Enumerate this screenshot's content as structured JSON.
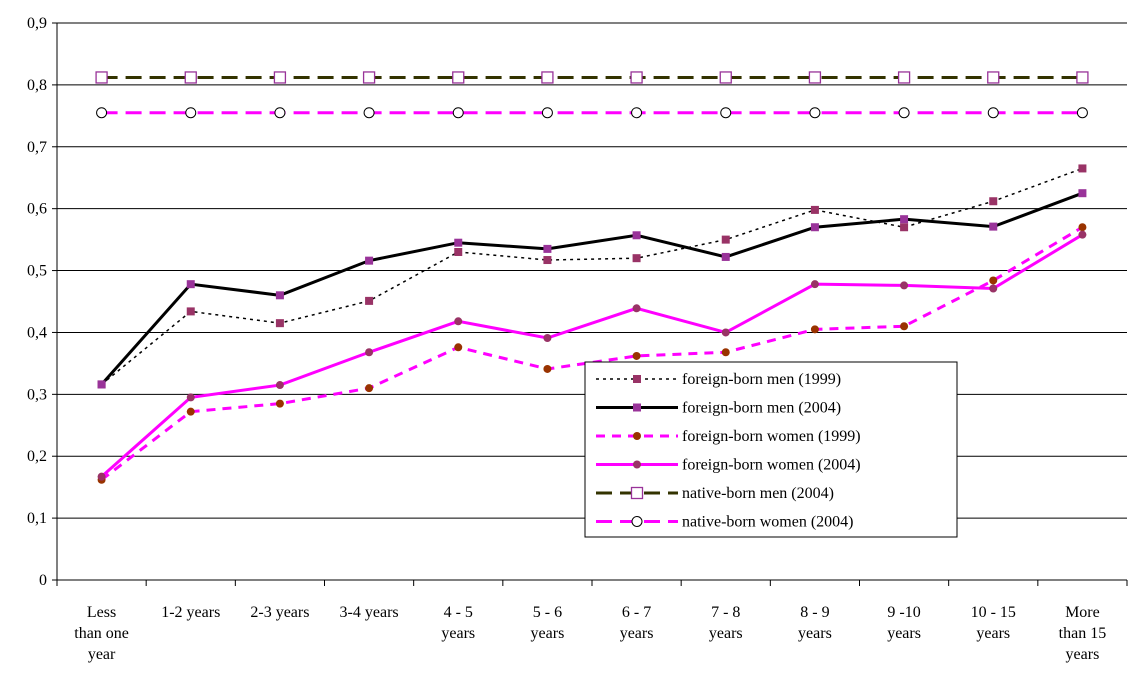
{
  "chart_data": {
    "type": "line",
    "categories": [
      "Less\nthan one\nyear",
      "1-2 years",
      "2-3 years",
      "3-4 years",
      "4 - 5\nyears",
      "5 - 6\nyears",
      "6 - 7\nyears",
      "7 - 8\nyears",
      "8 - 9\nyears",
      "9 -10\nyears",
      "10 - 15\nyears",
      "More\nthan 15\nyears"
    ],
    "series": [
      {
        "name": "foreign-born men (1999)",
        "color": "#000000",
        "dash": "dotted",
        "marker": "square",
        "marker_color": "#993366",
        "values": [
          0.316,
          0.434,
          0.415,
          0.451,
          0.53,
          0.517,
          0.52,
          0.55,
          0.598,
          0.57,
          0.612,
          0.665
        ]
      },
      {
        "name": "foreign-born men (2004)",
        "color": "#000000",
        "dash": "solid",
        "marker": "square",
        "marker_color": "#993399",
        "values": [
          0.316,
          0.478,
          0.46,
          0.516,
          0.545,
          0.535,
          0.557,
          0.522,
          0.57,
          0.583,
          0.571,
          0.625
        ]
      },
      {
        "name": "foreign-born women (1999)",
        "color": "#ff00ff",
        "dash": "dashed",
        "marker": "circle",
        "marker_color": "#993300",
        "values": [
          0.162,
          0.272,
          0.285,
          0.31,
          0.376,
          0.341,
          0.362,
          0.368,
          0.405,
          0.41,
          0.484,
          0.57
        ]
      },
      {
        "name": "foreign-born women (2004)",
        "color": "#ff00ff",
        "dash": "solid",
        "marker": "circle",
        "marker_color": "#993366",
        "values": [
          0.167,
          0.295,
          0.315,
          0.368,
          0.418,
          0.391,
          0.439,
          0.4,
          0.478,
          0.476,
          0.471,
          0.558
        ]
      },
      {
        "name": "native-born men (2004)",
        "color": "#333300",
        "dash": "longdash",
        "marker": "open-square",
        "marker_color": "#993399",
        "values": [
          0.812,
          0.812,
          0.812,
          0.812,
          0.812,
          0.812,
          0.812,
          0.812,
          0.812,
          0.812,
          0.812,
          0.812
        ]
      },
      {
        "name": "native-born women (2004)",
        "color": "#ff00ff",
        "dash": "longdash",
        "marker": "open-circle",
        "marker_color": "#000000",
        "values": [
          0.755,
          0.755,
          0.755,
          0.755,
          0.755,
          0.755,
          0.755,
          0.755,
          0.755,
          0.755,
          0.755,
          0.755
        ]
      }
    ],
    "ylim": [
      0,
      0.9
    ],
    "yticks": [
      0,
      {
        "value": 0.1,
        "label": "0,1"
      },
      {
        "value": 0.2,
        "label": "0,2"
      },
      {
        "value": 0.3,
        "label": "0,3"
      },
      {
        "value": 0.4,
        "label": "0,4"
      },
      {
        "value": 0.5,
        "label": "0,5"
      },
      {
        "value": 0.6,
        "label": "0,6"
      },
      {
        "value": 0.7,
        "label": "0,7"
      },
      {
        "value": 0.8,
        "label": "0,8"
      },
      {
        "value": 0.9,
        "label": "0,9"
      }
    ],
    "grid": true
  }
}
